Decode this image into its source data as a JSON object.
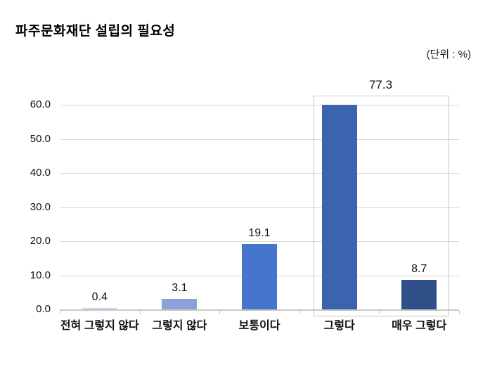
{
  "header": {
    "title": "파주문화재단 설립의 필요성",
    "unit_note": "(단위 : %)"
  },
  "chart_data": {
    "type": "bar",
    "title": "파주문화재단 설립의 필요성",
    "unit_label": "(단위 : %)",
    "categories": [
      "전혀 그렇지 않다",
      "그렇지 않다",
      "보통이다",
      "그렇다",
      "매우 그렇다"
    ],
    "values": [
      0.4,
      3.1,
      19.1,
      77.3,
      8.7
    ],
    "value_labels": [
      "0.4",
      "3.1",
      "19.1",
      "",
      "8.7"
    ],
    "bar_drawn_values": [
      0.4,
      3.1,
      19.1,
      60.0,
      8.7
    ],
    "bar_colors": [
      "#ccd3ec",
      "#8fa0d9",
      "#4575cd",
      "#3c64ae",
      "#2e4f87"
    ],
    "xlabel": "",
    "ylabel": "",
    "ylim": [
      0,
      60
    ],
    "ytick_step": 10,
    "ytick_labels": [
      "60.0",
      "50.0",
      "40.0",
      "30.0",
      "20.0",
      "10.0",
      "0.0"
    ],
    "grid": true,
    "legend": false,
    "annotation": {
      "label": "77.3",
      "box_categories": [
        "그렇다",
        "매우 그렇다"
      ],
      "border_color": "#c6c6c6",
      "note": "value 77.3 shown above a highlight box; 4th bar clipped at axis max 60"
    },
    "colors": {
      "gridline": "#d9d9d9",
      "axis_line": "#c8c8c8",
      "text": "#111111",
      "background": "#ffffff"
    }
  }
}
